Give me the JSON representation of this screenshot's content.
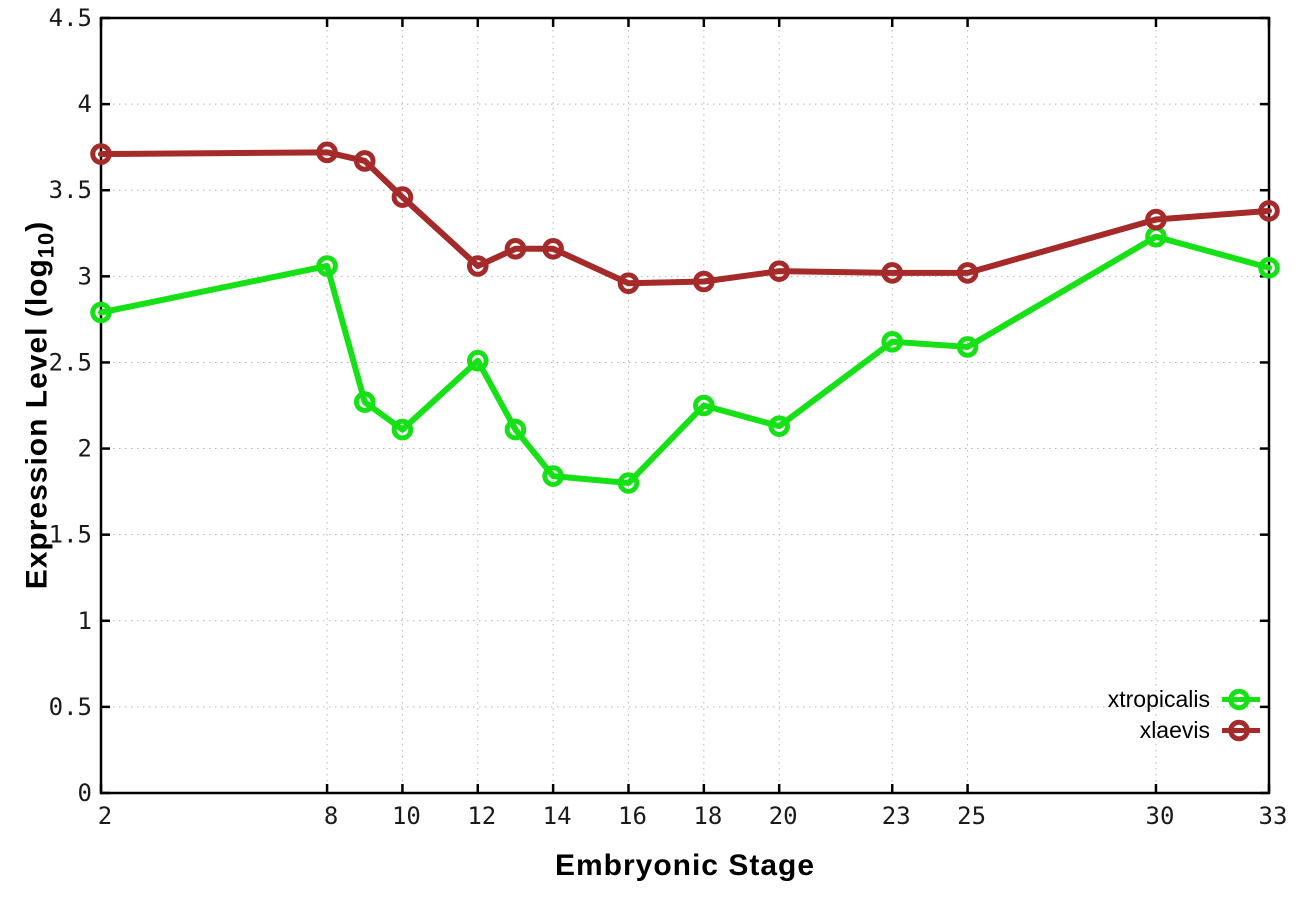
{
  "figure": {
    "background": "#ffffff",
    "xlabel": "Embryonic Stage",
    "ylabel_main": "Expression Level (log",
    "ylabel_sub": "10",
    "ylabel_close": ")"
  },
  "chart_data": {
    "type": "line",
    "title": "",
    "xlabel": "Embryonic Stage",
    "ylabel": "Expression Level (log10)",
    "x": [
      2,
      8,
      9,
      10,
      12,
      13,
      14,
      16,
      18,
      20,
      23,
      25,
      30,
      33
    ],
    "series": [
      {
        "name": "xtropicalis",
        "color": "#16e116",
        "values": [
          2.79,
          3.06,
          2.27,
          2.11,
          2.51,
          2.11,
          1.84,
          1.8,
          2.25,
          2.13,
          2.62,
          2.59,
          3.23,
          3.05
        ]
      },
      {
        "name": "xlaevis",
        "color": "#a52a2a",
        "values": [
          3.71,
          3.72,
          3.67,
          3.46,
          3.06,
          3.16,
          3.16,
          2.96,
          2.97,
          3.03,
          3.02,
          3.02,
          3.33,
          3.38
        ]
      }
    ],
    "xlim": [
      2,
      33
    ],
    "ylim": [
      0,
      4.5
    ],
    "xticks": [
      2,
      8,
      10,
      12,
      14,
      16,
      18,
      20,
      23,
      25,
      30,
      33
    ],
    "yticks": [
      0,
      0.5,
      1,
      1.5,
      2,
      2.5,
      3,
      3.5,
      4,
      4.5
    ],
    "grid": true,
    "grid_style": "dotted",
    "legend_position": "bottom-right-inside",
    "marker": "open-circle",
    "axis_color": "#000000",
    "grid_color": "#b5b5b5",
    "tick_label_color": "#1a1a1a"
  }
}
